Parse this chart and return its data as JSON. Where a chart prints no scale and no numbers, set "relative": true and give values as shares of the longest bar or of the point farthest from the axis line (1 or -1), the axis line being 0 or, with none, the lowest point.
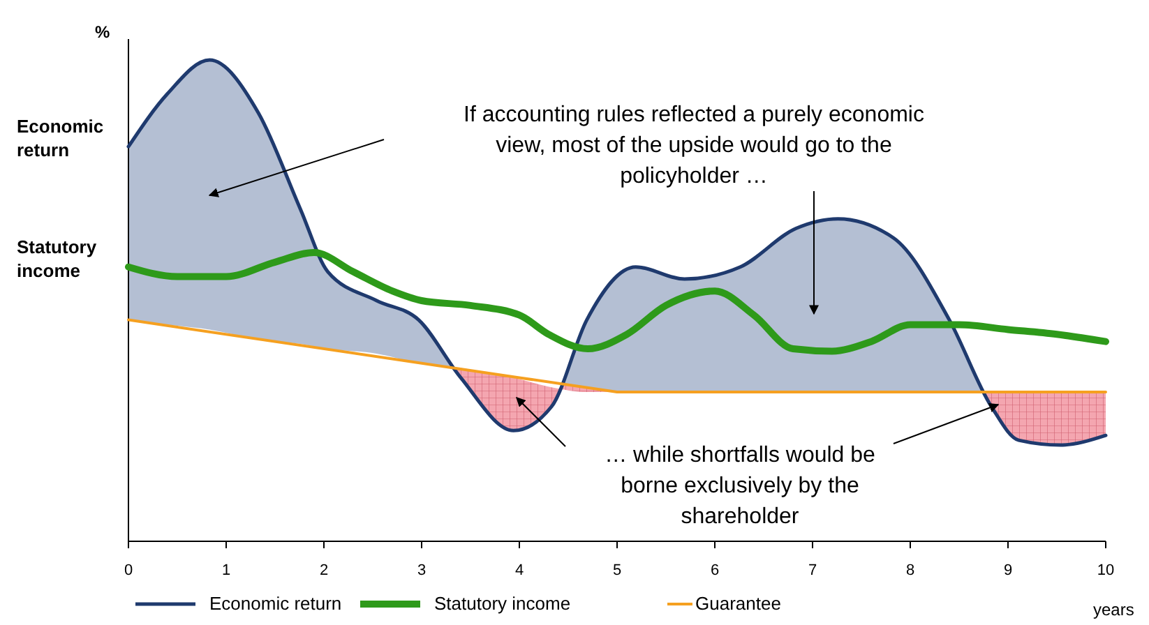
{
  "chart_data": {
    "type": "line",
    "relative": true,
    "ylabel": "%",
    "xlabel": "years",
    "xlim": [
      0,
      10
    ],
    "xticks": [
      0,
      1,
      2,
      3,
      4,
      5,
      6,
      7,
      8,
      9,
      10
    ],
    "tick_labels": "x",
    "legend": "bottom",
    "series": [
      {
        "name": "Economic return",
        "color": "#1f3a6e",
        "x": [
          0,
          0.4,
          0.83,
          1.33,
          1.76,
          2.04,
          2.54,
          2.97,
          3.4,
          3.94,
          4.33,
          4.69,
          5.19,
          5.69,
          6.26,
          6.83,
          7.26,
          7.83,
          8.4,
          8.83,
          9.11,
          9.54,
          10
        ],
        "values": [
          0.82,
          0.93,
          1.0,
          0.89,
          0.69,
          0.56,
          0.5,
          0.46,
          0.34,
          0.23,
          0.28,
          0.46,
          0.57,
          0.545,
          0.57,
          0.65,
          0.67,
          0.63,
          0.46,
          0.28,
          0.21,
          0.2,
          0.22
        ],
        "lower": [
          0.46,
          0.45,
          0.44,
          0.42,
          0.41,
          0.4,
          0.39,
          0.37,
          0.36,
          0.34,
          0.32,
          0.31,
          0.31,
          0.31,
          0.31,
          0.31,
          0.31,
          0.31,
          0.31,
          0.31,
          0.31,
          0.31,
          0.31
        ],
        "upper": [
          0.82,
          0.93,
          1.0,
          0.89,
          0.69,
          0.56,
          0.5,
          0.46,
          0.34,
          0.23,
          0.28,
          0.46,
          0.57,
          0.545,
          0.57,
          0.65,
          0.67,
          0.63,
          0.46,
          0.28,
          0.21,
          0.2,
          0.22
        ]
      },
      {
        "name": "Statutory income",
        "color": "#2e9a1a",
        "x": [
          0,
          0.5,
          1,
          1.5,
          1.9,
          2.3,
          2.7,
          3,
          3.5,
          4,
          4.3,
          4.7,
          5.1,
          5.5,
          6,
          6.4,
          6.8,
          7.2,
          7.6,
          8,
          8.5,
          9,
          9.5,
          10
        ],
        "values": [
          0.57,
          0.55,
          0.55,
          0.58,
          0.6,
          0.56,
          0.52,
          0.5,
          0.49,
          0.47,
          0.43,
          0.4,
          0.43,
          0.49,
          0.52,
          0.47,
          0.4,
          0.395,
          0.415,
          0.45,
          0.45,
          0.44,
          0.43,
          0.415
        ]
      },
      {
        "name": "Guarantee",
        "color": "#f5a020",
        "x": [
          0,
          4,
          5,
          10
        ],
        "values": [
          0.46,
          0.34,
          0.31,
          0.31
        ]
      }
    ],
    "annotations": [
      {
        "text": "Economic return",
        "x": 0,
        "y": 0.82
      },
      {
        "text": "Statutory income",
        "x": 0,
        "y": 0.57
      },
      "If accounting rules reflected a purely economic view, most of the upside would go to the policyholder …",
      "… while shortfalls would be borne exclusively by the shareholder"
    ]
  }
}
